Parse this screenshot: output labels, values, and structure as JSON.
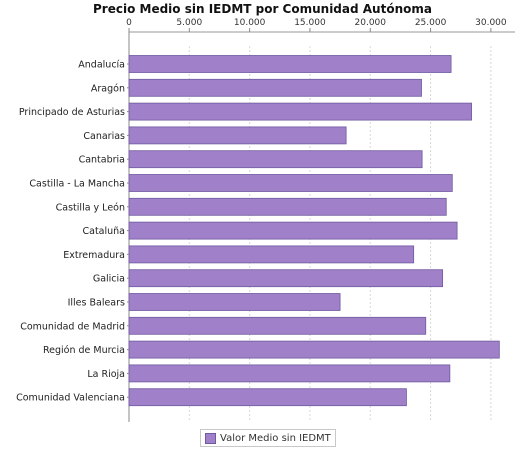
{
  "chart_data": {
    "type": "bar",
    "orientation": "horizontal",
    "title": "Precio Medio sin IEDMT por Comunidad Autónoma",
    "xlabel": "",
    "ylabel": "",
    "xlim": [
      0,
      32000
    ],
    "ticks": [
      0,
      5000,
      10000,
      15000,
      20000,
      25000,
      30000
    ],
    "tick_labels": [
      "0",
      "5.000",
      "10.000",
      "15.000",
      "20.000",
      "25.000",
      "30.000"
    ],
    "grid": true,
    "legend_position": "bottom",
    "categories": [
      "Andalucía",
      "Aragón",
      "Principado de Asturias",
      "Canarias",
      "Cantabria",
      "Castilla - La Mancha",
      "Castilla y León",
      "Cataluña",
      "Extremadura",
      "Galicia",
      "Illes Balears",
      "Comunidad de Madrid",
      "Región de Murcia",
      "La Rioja",
      "Comunidad Valenciana"
    ],
    "series": [
      {
        "name": "Valor Medio sin IEDMT",
        "color": "#a080c8",
        "values": [
          26700,
          24250,
          28400,
          18000,
          24300,
          26800,
          26300,
          27200,
          23600,
          26000,
          17500,
          24600,
          30700,
          26600,
          23000
        ]
      }
    ]
  }
}
